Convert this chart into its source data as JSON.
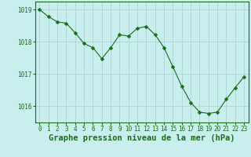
{
  "x": [
    0,
    1,
    2,
    3,
    4,
    5,
    6,
    7,
    8,
    9,
    10,
    11,
    12,
    13,
    14,
    15,
    16,
    17,
    18,
    19,
    20,
    21,
    22,
    23
  ],
  "y": [
    1019.0,
    1018.78,
    1018.62,
    1018.58,
    1018.28,
    1017.95,
    1017.82,
    1017.48,
    1017.82,
    1018.22,
    1018.18,
    1018.42,
    1018.48,
    1018.22,
    1017.82,
    1017.22,
    1016.62,
    1016.12,
    1015.82,
    1015.78,
    1015.82,
    1016.22,
    1016.58,
    1016.92
  ],
  "line_color": "#1a6e1a",
  "marker": "D",
  "marker_size": 2.5,
  "bg_color": "#c8eeee",
  "grid_color": "#aacccc",
  "xlabel": "Graphe pression niveau de la mer (hPa)",
  "xlabel_color": "#1a6e1a",
  "tick_color": "#1a6e1a",
  "ylim": [
    1015.5,
    1019.25
  ],
  "xlim": [
    -0.5,
    23.5
  ],
  "yticks": [
    1016,
    1017,
    1018,
    1019
  ],
  "xticks": [
    0,
    1,
    2,
    3,
    4,
    5,
    6,
    7,
    8,
    9,
    10,
    11,
    12,
    13,
    14,
    15,
    16,
    17,
    18,
    19,
    20,
    21,
    22,
    23
  ],
  "xtick_labels": [
    "0",
    "1",
    "2",
    "3",
    "4",
    "5",
    "6",
    "7",
    "8",
    "9",
    "10",
    "11",
    "12",
    "13",
    "14",
    "15",
    "16",
    "17",
    "18",
    "19",
    "20",
    "21",
    "22",
    "23"
  ],
  "tick_fontsize": 5.5,
  "xlabel_fontsize": 7.5
}
